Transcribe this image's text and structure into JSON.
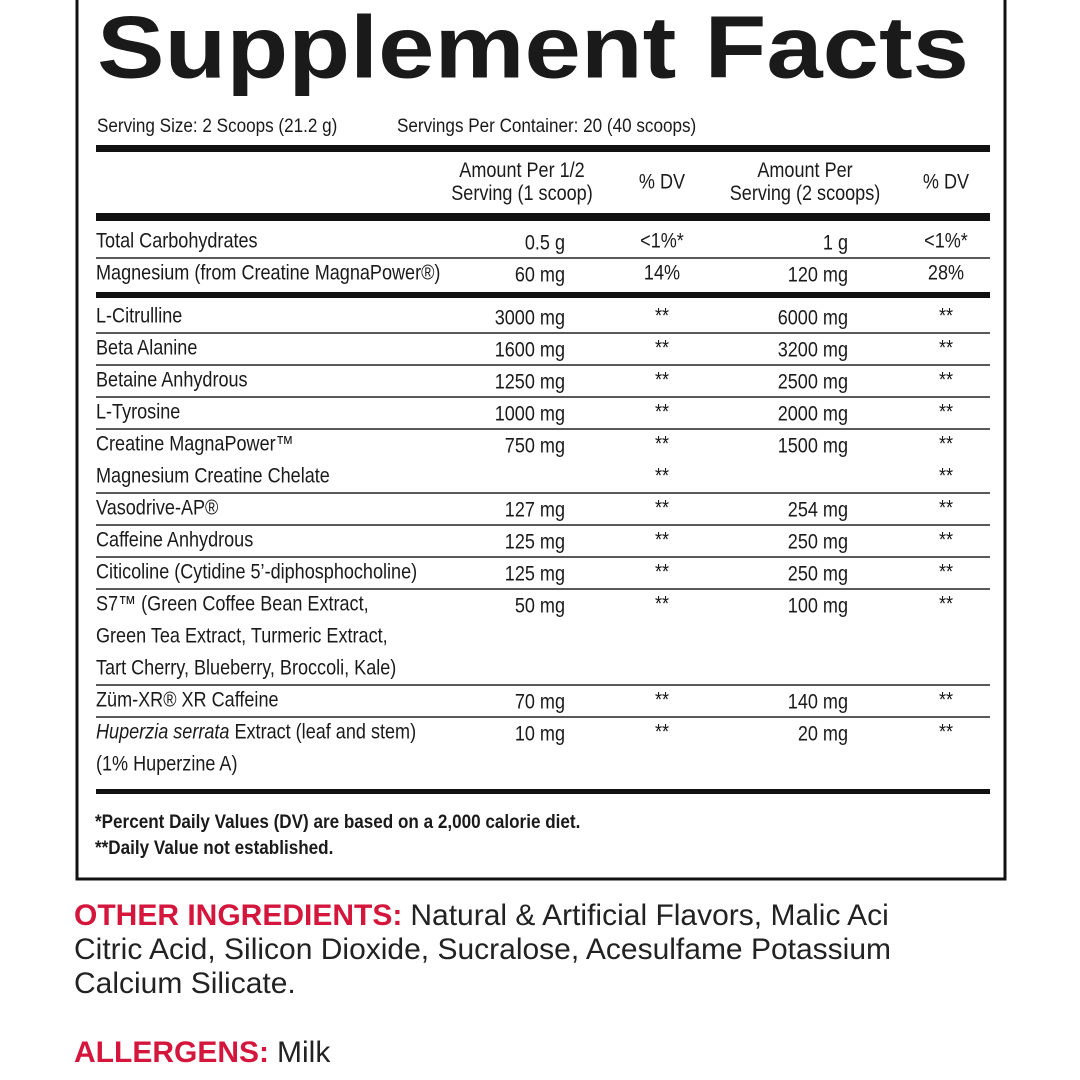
{
  "title": "Supplement Facts",
  "serving_size": "Serving Size: 2 Scoops (21.2 g)",
  "servings_per_container": "Servings Per Container: 20 (40 scoops)",
  "columns": [
    {
      "lines": [
        "Amount Per 1/2",
        "Serving (1 scoop)"
      ]
    },
    {
      "lines": [
        "% DV"
      ]
    },
    {
      "lines": [
        "Amount Per",
        "Serving (2 scoops)"
      ]
    },
    {
      "lines": [
        "% DV"
      ]
    }
  ],
  "nutrients": [
    {
      "name": [
        "Total Carbohydrates"
      ],
      "amount_half": "0.5 g",
      "dv_half": [
        "<1%*"
      ],
      "amount_full": "1 g",
      "dv_full": [
        "<1%*"
      ]
    },
    {
      "name": [
        "Magnesium (from Creatine MagnaPower®)"
      ],
      "amount_half": "60 mg",
      "dv_half": [
        "14%"
      ],
      "amount_full": "120 mg",
      "dv_full": [
        "28%"
      ]
    }
  ],
  "ingredients": [
    {
      "name": [
        "L-Citrulline"
      ],
      "amount_half": "3000 mg",
      "dv_half": [
        "**"
      ],
      "amount_full": "6000 mg",
      "dv_full": [
        "**"
      ]
    },
    {
      "name": [
        "Beta Alanine"
      ],
      "amount_half": "1600 mg",
      "dv_half": [
        "**"
      ],
      "amount_full": "3200 mg",
      "dv_full": [
        "**"
      ]
    },
    {
      "name": [
        "Betaine Anhydrous"
      ],
      "amount_half": "1250 mg",
      "dv_half": [
        "**"
      ],
      "amount_full": "2500 mg",
      "dv_full": [
        "**"
      ]
    },
    {
      "name": [
        "L-Tyrosine"
      ],
      "amount_half": "1000 mg",
      "dv_half": [
        "**"
      ],
      "amount_full": "2000 mg",
      "dv_full": [
        "**"
      ]
    },
    {
      "name": [
        "Creatine MagnaPower™",
        "Magnesium Creatine Chelate"
      ],
      "amount_half": "750 mg",
      "dv_half": [
        "**",
        "**"
      ],
      "amount_full": "1500 mg",
      "dv_full": [
        "**",
        "**"
      ]
    },
    {
      "name": [
        "Vasodrive-AP®"
      ],
      "amount_half": "127 mg",
      "dv_half": [
        "**"
      ],
      "amount_full": "254 mg",
      "dv_full": [
        "**"
      ]
    },
    {
      "name": [
        "Caffeine Anhydrous"
      ],
      "amount_half": "125 mg",
      "dv_half": [
        "**"
      ],
      "amount_full": "250 mg",
      "dv_full": [
        "**"
      ]
    },
    {
      "name": [
        "Citicoline (Cytidine 5’-diphosphocholine)"
      ],
      "amount_half": "125 mg",
      "dv_half": [
        "**"
      ],
      "amount_full": "250 mg",
      "dv_full": [
        "**"
      ]
    },
    {
      "name": [
        "S7™ (Green Coffee Bean Extract,",
        "Green Tea Extract, Turmeric Extract,",
        "Tart Cherry, Blueberry, Broccoli, Kale)"
      ],
      "amount_half": "50 mg",
      "dv_half": [
        "**"
      ],
      "amount_full": "100 mg",
      "dv_full": [
        "**"
      ]
    },
    {
      "name": [
        "Züm-XR® XR Caffeine"
      ],
      "amount_half": "70 mg",
      "dv_half": [
        "**"
      ],
      "amount_full": "140 mg",
      "dv_full": [
        "**"
      ]
    },
    {
      "name_italic": "Huperzia serrata",
      "name": [
        " Extract (leaf and stem)",
        "(1% Huperzine A)"
      ],
      "amount_half": "10 mg",
      "dv_half": [
        "**"
      ],
      "amount_full": "20 mg",
      "dv_full": [
        "**"
      ]
    }
  ],
  "footnotes": [
    "*Percent Daily Values (DV) are based on a 2,000 calorie diet.",
    "**Daily Value not established."
  ],
  "other_ingredients": {
    "label": "OTHER INGREDIENTS:",
    "lines": [
      "Natural & Artificial Flavors, Malic Aci",
      "Citric Acid, Silicon Dioxide, Sucralose, Acesulfame Potassium",
      "Calcium Silicate."
    ]
  },
  "allergens": {
    "label": "ALLERGENS:",
    "text": "Milk"
  }
}
